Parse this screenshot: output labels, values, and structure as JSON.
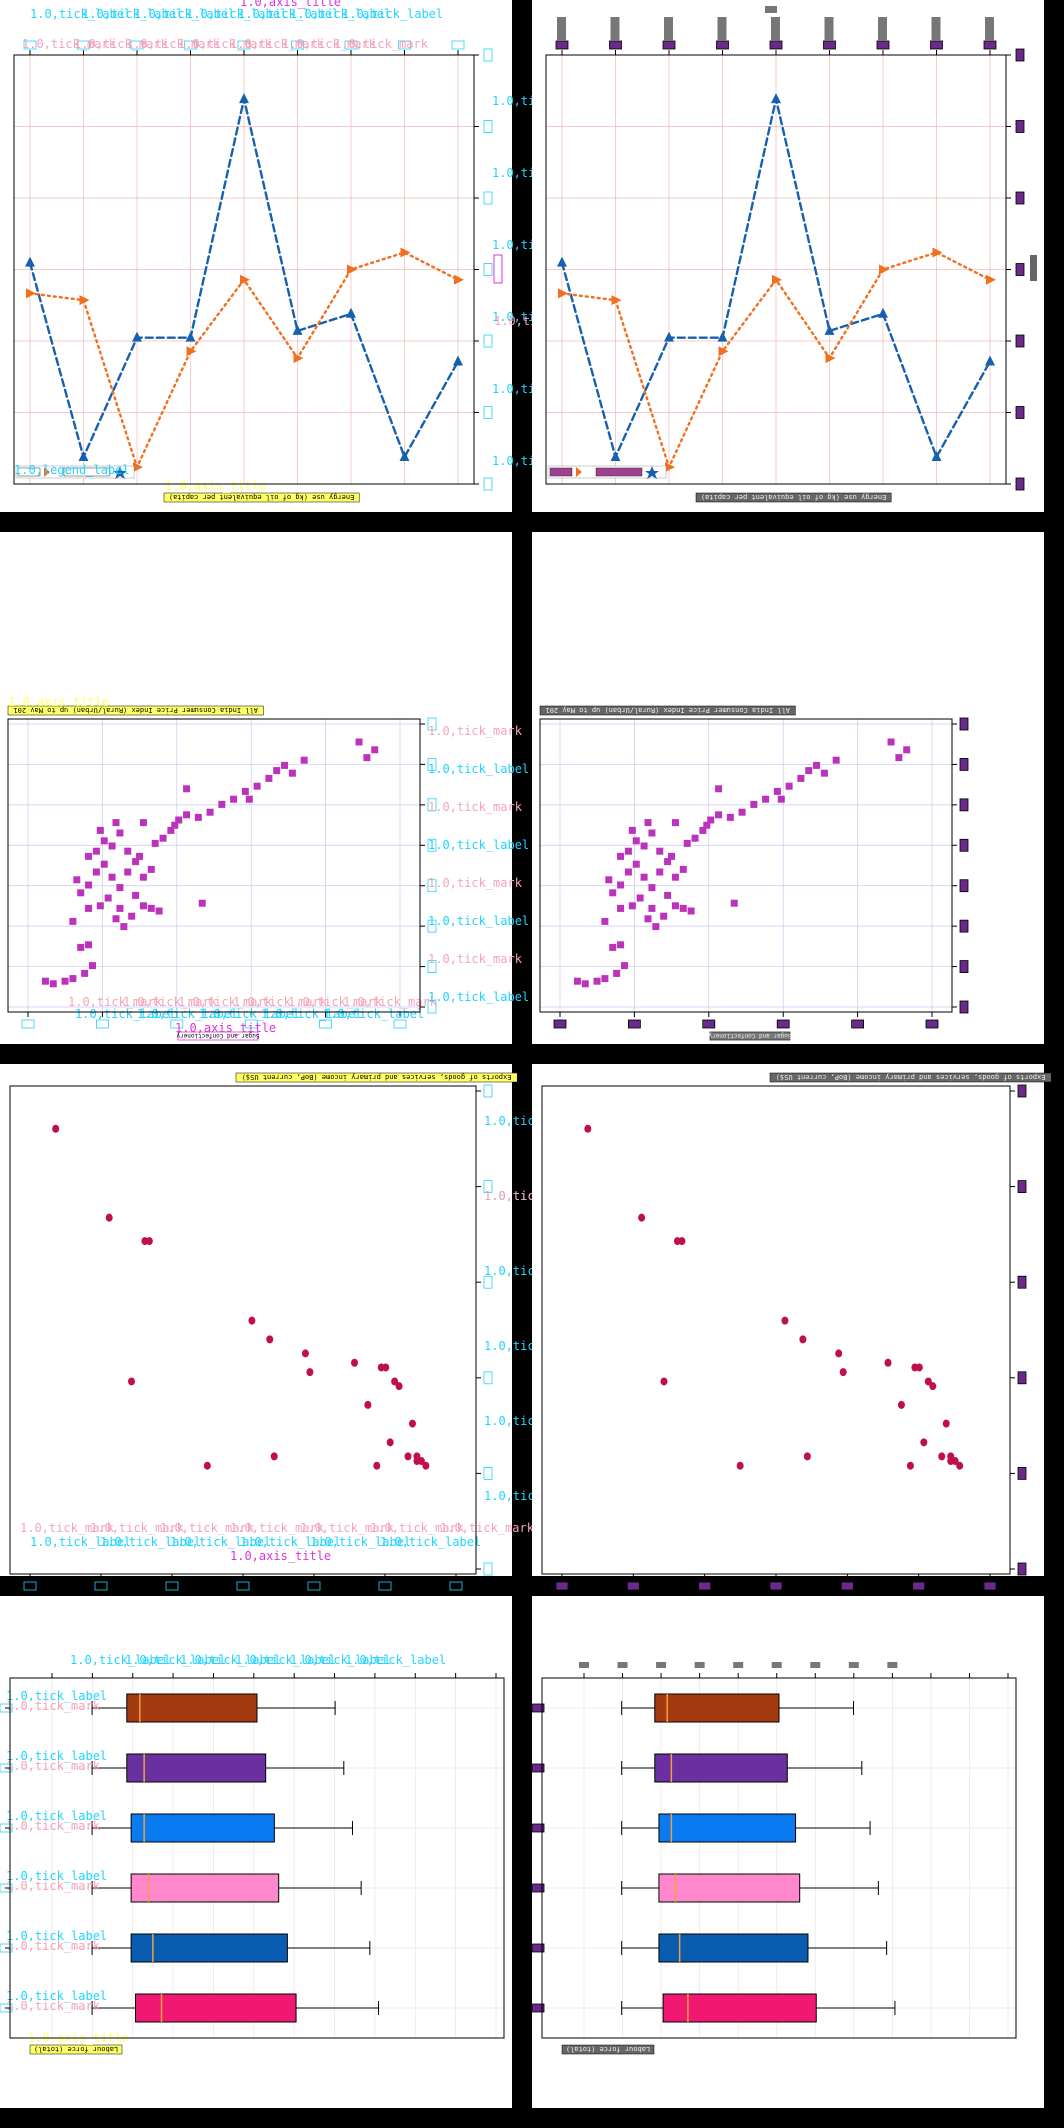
{
  "colors": {
    "panel_bg": "#ffffff",
    "separator": "#000000",
    "grid_red": "#f3b8b8",
    "grid_blue": "#c8c8f0",
    "overlay_cyan": "#21d3ff",
    "overlay_pink": "#f5a3b8",
    "overlay_magenta": "#dd33dd",
    "overlay_yellow": "#ffff66",
    "box_purple": "#6a2a8a"
  },
  "overlay": {
    "tick_label": "1.0,tick_label",
    "tick_mark": "1.0,tick_mark",
    "axis_title": "1.0,axis_title",
    "legend_label": "1.0,legend_label"
  },
  "chart_data": [
    {
      "type": "line",
      "title": "Energy use (kg of oil equivalent per capita)",
      "x": [
        1,
        2,
        3,
        4,
        5,
        6,
        7,
        8,
        9
      ],
      "series": [
        {
          "name": "",
          "color": "#1760b0",
          "marker": "triangle-up",
          "style": "dashed",
          "values": [
            0.62,
            0.05,
            0.4,
            0.4,
            1.1,
            0.42,
            0.47,
            0.05,
            0.33
          ]
        },
        {
          "name": "",
          "color": "#f07020",
          "marker": "triangle-right",
          "style": "dotted",
          "values": [
            0.53,
            0.51,
            0.02,
            0.36,
            0.57,
            0.34,
            0.6,
            0.65,
            0.57
          ]
        }
      ],
      "ylim": [
        0,
        1.2
      ],
      "grid": true,
      "legend": "bottom-left"
    },
    {
      "type": "scatter",
      "title": "All India Consumer Price Index (Rural/Urban) up to May 201",
      "xlabel": "Sugar and Confectionery",
      "series": [
        {
          "name": "",
          "color": "#bb33bb",
          "marker": "square",
          "points": [
            [
              0.07,
              0.08
            ],
            [
              0.09,
              0.07
            ],
            [
              0.12,
              0.08
            ],
            [
              0.14,
              0.09
            ],
            [
              0.17,
              0.11
            ],
            [
              0.19,
              0.14
            ],
            [
              0.16,
              0.21
            ],
            [
              0.18,
              0.22
            ],
            [
              0.14,
              0.31
            ],
            [
              0.18,
              0.36
            ],
            [
              0.16,
              0.42
            ],
            [
              0.18,
              0.45
            ],
            [
              0.21,
              0.37
            ],
            [
              0.23,
              0.4
            ],
            [
              0.25,
              0.32
            ],
            [
              0.27,
              0.29
            ],
            [
              0.26,
              0.36
            ],
            [
              0.29,
              0.33
            ],
            [
              0.3,
              0.41
            ],
            [
              0.32,
              0.37
            ],
            [
              0.34,
              0.36
            ],
            [
              0.36,
              0.35
            ],
            [
              0.2,
              0.5
            ],
            [
              0.22,
              0.53
            ],
            [
              0.15,
              0.47
            ],
            [
              0.24,
              0.48
            ],
            [
              0.26,
              0.44
            ],
            [
              0.28,
              0.5
            ],
            [
              0.3,
              0.54
            ],
            [
              0.32,
              0.48
            ],
            [
              0.34,
              0.51
            ],
            [
              0.18,
              0.56
            ],
            [
              0.2,
              0.58
            ],
            [
              0.22,
              0.62
            ],
            [
              0.24,
              0.6
            ],
            [
              0.26,
              0.65
            ],
            [
              0.28,
              0.58
            ],
            [
              0.31,
              0.56
            ],
            [
              0.35,
              0.61
            ],
            [
              0.37,
              0.63
            ],
            [
              0.39,
              0.66
            ],
            [
              0.41,
              0.7
            ],
            [
              0.43,
              0.72
            ],
            [
              0.46,
              0.71
            ],
            [
              0.49,
              0.73
            ],
            [
              0.52,
              0.76
            ],
            [
              0.55,
              0.78
            ],
            [
              0.58,
              0.81
            ],
            [
              0.61,
              0.83
            ],
            [
              0.64,
              0.86
            ],
            [
              0.66,
              0.89
            ],
            [
              0.68,
              0.91
            ],
            [
              0.7,
              0.88
            ],
            [
              0.73,
              0.93
            ],
            [
              0.47,
              0.38
            ],
            [
              0.32,
              0.69
            ],
            [
              0.25,
              0.69
            ],
            [
              0.21,
              0.66
            ],
            [
              0.87,
              1.0
            ],
            [
              0.89,
              0.94
            ],
            [
              0.91,
              0.97
            ],
            [
              0.43,
              0.82
            ],
            [
              0.59,
              0.78
            ],
            [
              0.4,
              0.68
            ]
          ]
        }
      ],
      "xlim": [
        0,
        1
      ],
      "ylim": [
        0,
        1.05
      ],
      "grid": true
    },
    {
      "type": "scatter",
      "title": "Exports of goods, services and primary income (BoP, current US$)",
      "series": [
        {
          "name": "",
          "color": "#c0104a",
          "marker": "circle",
          "points": [
            [
              0.08,
              0.93
            ],
            [
              0.2,
              0.74
            ],
            [
              0.28,
              0.69
            ],
            [
              0.29,
              0.69
            ],
            [
              0.25,
              0.39
            ],
            [
              0.52,
              0.52
            ],
            [
              0.56,
              0.48
            ],
            [
              0.64,
              0.45
            ],
            [
              0.65,
              0.41
            ],
            [
              0.75,
              0.43
            ],
            [
              0.81,
              0.42
            ],
            [
              0.82,
              0.42
            ],
            [
              0.84,
              0.39
            ],
            [
              0.85,
              0.38
            ],
            [
              0.78,
              0.34
            ],
            [
              0.88,
              0.3
            ],
            [
              0.89,
              0.23
            ],
            [
              0.87,
              0.23
            ],
            [
              0.9,
              0.22
            ],
            [
              0.91,
              0.21
            ],
            [
              0.89,
              0.22
            ],
            [
              0.8,
              0.21
            ],
            [
              0.57,
              0.23
            ],
            [
              0.42,
              0.21
            ],
            [
              0.83,
              0.26
            ]
          ]
        }
      ],
      "xlim": [
        0,
        1
      ],
      "ylim": [
        0,
        1
      ],
      "grid": false
    },
    {
      "type": "box",
      "title": "Labour force (total)",
      "orientation": "horizontal",
      "series": [
        {
          "name": "",
          "color": "#a33a10",
          "min": 0.12,
          "q1": 0.2,
          "median": 0.23,
          "q3": 0.5,
          "max": 0.68
        },
        {
          "name": "",
          "color": "#6a30a0",
          "min": 0.12,
          "q1": 0.2,
          "median": 0.24,
          "q3": 0.52,
          "max": 0.7
        },
        {
          "name": "",
          "color": "#0a7af0",
          "min": 0.12,
          "q1": 0.21,
          "median": 0.24,
          "q3": 0.54,
          "max": 0.72
        },
        {
          "name": "",
          "color": "#ff88cc",
          "min": 0.12,
          "q1": 0.21,
          "median": 0.25,
          "q3": 0.55,
          "max": 0.74
        },
        {
          "name": "",
          "color": "#0a5cb0",
          "min": 0.12,
          "q1": 0.21,
          "median": 0.26,
          "q3": 0.57,
          "max": 0.76
        },
        {
          "name": "",
          "color": "#f01870",
          "min": 0.12,
          "q1": 0.22,
          "median": 0.28,
          "q3": 0.59,
          "max": 0.78
        }
      ],
      "xlim": [
        0,
        1
      ],
      "grid": true
    }
  ]
}
